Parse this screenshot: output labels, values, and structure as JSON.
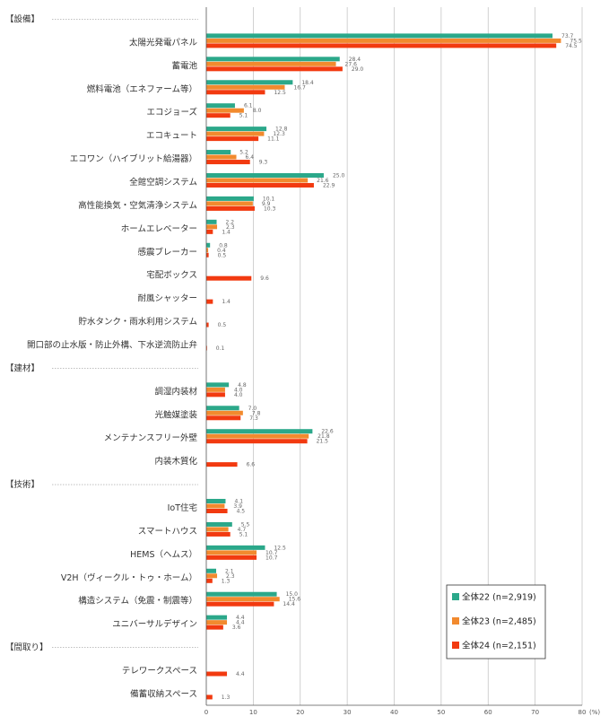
{
  "chart_data": {
    "type": "bar",
    "orientation": "horizontal",
    "x_unit": "(%)",
    "xlim": [
      0,
      80
    ],
    "x_ticks": [
      0,
      10,
      20,
      30,
      40,
      50,
      60,
      70,
      80
    ],
    "grid": true,
    "legend_position": "bottom-right",
    "series": [
      {
        "name": "全体22 (n=2,919)",
        "color": "#2ba88a"
      },
      {
        "name": "全体23 (n=2,485)",
        "color": "#f28a2e"
      },
      {
        "name": "全体24 (n=2,151)",
        "color": "#f23a10"
      }
    ],
    "sections": [
      {
        "label": "【設備】",
        "rows": [
          {
            "label": "太陽光発電パネル",
            "values": [
              73.7,
              75.5,
              74.5
            ],
            "labels": [
              "73.7",
              "75.5",
              "74.5"
            ]
          },
          {
            "label": "蓄電池",
            "values": [
              28.4,
              27.6,
              29.0
            ],
            "labels": [
              "28.4",
              "27.6",
              "29.0"
            ]
          },
          {
            "label": "燃料電池（エネファーム等）",
            "values": [
              18.4,
              16.7,
              12.5
            ],
            "labels": [
              "18.4",
              "16.7",
              "12.5"
            ]
          },
          {
            "label": "エコジョーズ",
            "values": [
              6.1,
              8.0,
              5.1
            ],
            "labels": [
              "6.1",
              "8.0",
              "5.1"
            ]
          },
          {
            "label": "エコキュート",
            "values": [
              12.8,
              12.3,
              11.1
            ],
            "labels": [
              "12.8",
              "12.3",
              "11.1"
            ]
          },
          {
            "label": "エコワン（ハイブリット給湯器）",
            "values": [
              5.2,
              6.4,
              9.3
            ],
            "labels": [
              "5.2",
              "6.4",
              "9.3"
            ]
          },
          {
            "label": "全館空調システム",
            "values": [
              25.0,
              21.6,
              22.9
            ],
            "labels": [
              "25.0",
              "21.6",
              "22.9"
            ]
          },
          {
            "label": "高性能換気・空気清浄システム",
            "values": [
              10.1,
              9.9,
              10.3
            ],
            "labels": [
              "10.1",
              "9.9",
              "10.3"
            ]
          },
          {
            "label": "ホームエレベーター",
            "values": [
              2.2,
              2.3,
              1.4
            ],
            "labels": [
              "2.2",
              "2.3",
              "1.4"
            ]
          },
          {
            "label": "感震ブレーカー",
            "values": [
              0.8,
              0.4,
              0.5
            ],
            "labels": [
              "0.8",
              "0.4",
              "0.5"
            ]
          },
          {
            "label": "宅配ボックス",
            "values": [
              null,
              null,
              9.6
            ],
            "labels": [
              "",
              "",
              "9.6"
            ]
          },
          {
            "label": "耐風シャッター",
            "values": [
              null,
              null,
              1.4
            ],
            "labels": [
              "",
              "",
              "1.4"
            ]
          },
          {
            "label": "貯水タンク・雨水利用システム",
            "values": [
              null,
              null,
              0.5
            ],
            "labels": [
              "",
              "",
              "0.5"
            ]
          },
          {
            "label": "開口部の止水版・防止外構、下水逆流防止弁",
            "values": [
              null,
              null,
              0.1
            ],
            "labels": [
              "",
              "",
              "0.1"
            ]
          }
        ]
      },
      {
        "label": "【建材】",
        "rows": [
          {
            "label": "調湿内装材",
            "values": [
              4.8,
              4.0,
              4.0
            ],
            "labels": [
              "4.8",
              "4.0",
              "4.0"
            ]
          },
          {
            "label": "光触媒塗装",
            "values": [
              7.0,
              7.8,
              7.3
            ],
            "labels": [
              "7.0",
              "7.8",
              "7.3"
            ]
          },
          {
            "label": "メンテナンスフリー外壁",
            "values": [
              22.6,
              21.8,
              21.5
            ],
            "labels": [
              "22.6",
              "21.8",
              "21.5"
            ]
          },
          {
            "label": "内装木質化",
            "values": [
              null,
              null,
              6.6
            ],
            "labels": [
              "",
              "",
              "6.6"
            ]
          }
        ]
      },
      {
        "label": "【技術】",
        "rows": [
          {
            "label": "IoT住宅",
            "values": [
              4.1,
              3.9,
              4.5
            ],
            "labels": [
              "4.1",
              "3.9",
              "4.5"
            ]
          },
          {
            "label": "スマートハウス",
            "values": [
              5.5,
              4.7,
              5.1
            ],
            "labels": [
              "5.5",
              "4.7",
              "5.1"
            ]
          },
          {
            "label": "HEMS（ヘムス）",
            "values": [
              12.5,
              10.7,
              10.7
            ],
            "labels": [
              "12.5",
              "10.7",
              "10.7"
            ]
          },
          {
            "label": "V2H（ヴィークル・トゥ・ホーム）",
            "values": [
              2.1,
              2.3,
              1.3
            ],
            "labels": [
              "2.1",
              "2.3",
              "1.3"
            ]
          },
          {
            "label": "構造システム（免震・制震等）",
            "values": [
              15.0,
              15.6,
              14.4
            ],
            "labels": [
              "15.0",
              "15.6",
              "14.4"
            ]
          },
          {
            "label": "ユニバーサルデザイン",
            "values": [
              4.4,
              4.4,
              3.6
            ],
            "labels": [
              "4.4",
              "4.4",
              "3.6"
            ]
          }
        ]
      },
      {
        "label": "【間取り】",
        "rows": [
          {
            "label": "テレワークスペース",
            "values": [
              null,
              null,
              4.4
            ],
            "labels": [
              "",
              "",
              "4.4"
            ]
          },
          {
            "label": "備蓄収納スペース",
            "values": [
              null,
              null,
              1.3
            ],
            "labels": [
              "",
              "",
              "1.3"
            ]
          }
        ]
      }
    ]
  }
}
